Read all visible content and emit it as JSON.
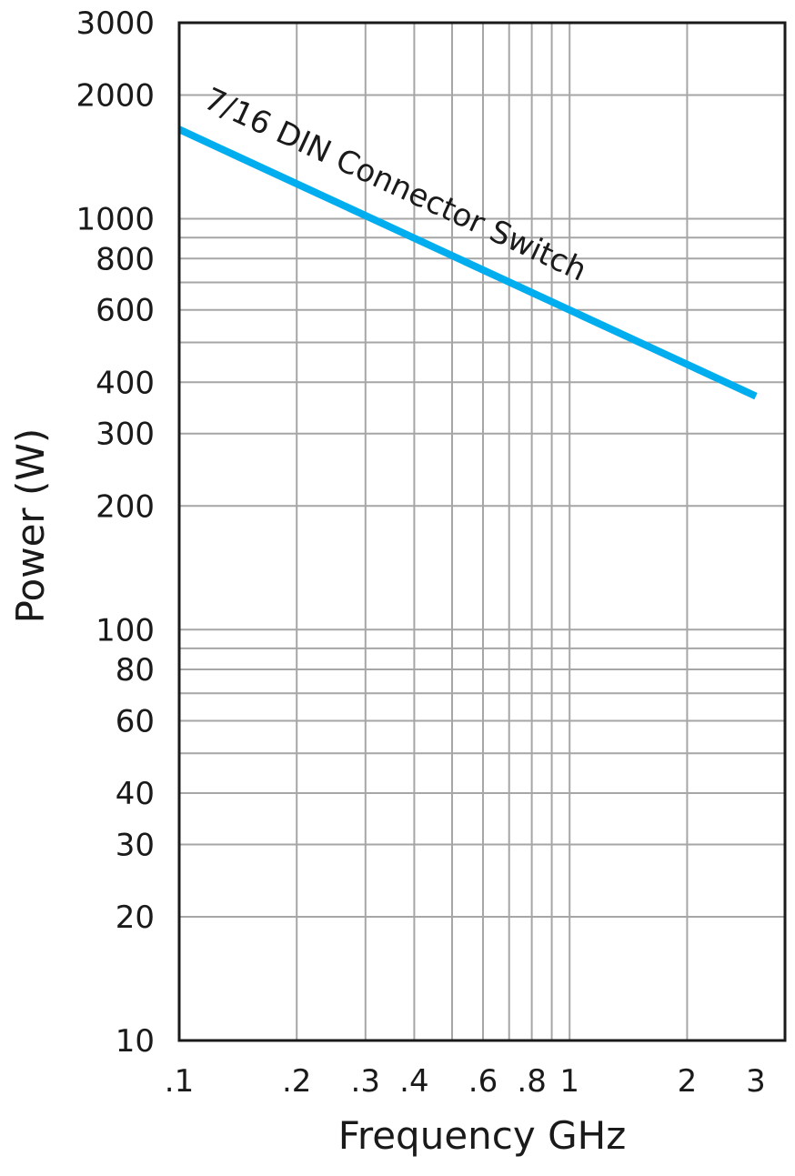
{
  "chart_data": {
    "type": "line",
    "xlabel": "Frequency GHz",
    "ylabel": "Power (W)",
    "x_scale": "log",
    "y_scale": "log",
    "xlim": [
      0.1,
      3
    ],
    "ylim": [
      10,
      3000
    ],
    "grid": true,
    "x_ticks": [
      {
        "value": 0.1,
        "label": ".1"
      },
      {
        "value": 0.2,
        "label": ".2"
      },
      {
        "value": 0.3,
        "label": ".3"
      },
      {
        "value": 0.4,
        "label": ".4"
      },
      {
        "value": 0.6,
        "label": ".6"
      },
      {
        "value": 0.8,
        "label": ".8"
      },
      {
        "value": 1,
        "label": "1"
      },
      {
        "value": 2,
        "label": "2"
      },
      {
        "value": 3,
        "label": "3"
      }
    ],
    "x_grid": [
      0.2,
      0.3,
      0.4,
      0.5,
      0.6,
      0.7,
      0.8,
      0.9,
      1,
      2
    ],
    "y_ticks": [
      {
        "value": 10,
        "label": "10"
      },
      {
        "value": 20,
        "label": "20"
      },
      {
        "value": 30,
        "label": "30"
      },
      {
        "value": 40,
        "label": "40"
      },
      {
        "value": 60,
        "label": "60"
      },
      {
        "value": 80,
        "label": "80"
      },
      {
        "value": 100,
        "label": "100"
      },
      {
        "value": 200,
        "label": "200"
      },
      {
        "value": 300,
        "label": "300"
      },
      {
        "value": 400,
        "label": "400"
      },
      {
        "value": 600,
        "label": "600"
      },
      {
        "value": 800,
        "label": "800"
      },
      {
        "value": 1000,
        "label": "1000"
      },
      {
        "value": 2000,
        "label": "2000"
      },
      {
        "value": 3000,
        "label": "3000"
      }
    ],
    "y_grid": [
      20,
      30,
      40,
      50,
      60,
      70,
      80,
      90,
      100,
      200,
      300,
      400,
      500,
      600,
      700,
      800,
      900,
      1000,
      2000
    ],
    "series": [
      {
        "name": "7/16 DIN Connector Switch",
        "color": "#00aeef",
        "x": [
          0.1,
          3
        ],
        "y": [
          1650,
          370
        ]
      }
    ]
  }
}
